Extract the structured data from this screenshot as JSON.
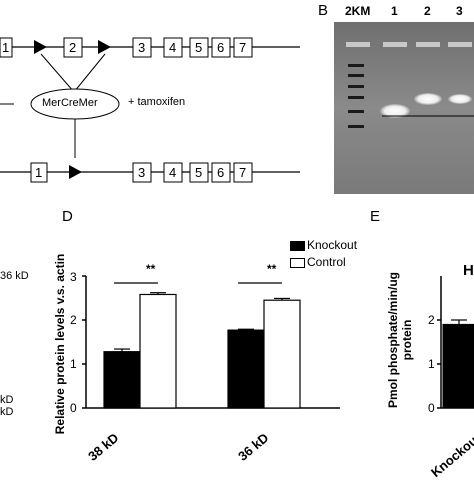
{
  "panel_labels": {
    "b": "B",
    "d": "D",
    "e": "E"
  },
  "schematic": {
    "exons_top": [
      "1",
      "2",
      "3",
      "4",
      "5",
      "6",
      "7"
    ],
    "exons_bottom": [
      "1",
      "3",
      "4",
      "5",
      "6",
      "7"
    ],
    "recombinase": "MerCreMer",
    "treatment": "+ tamoxifen"
  },
  "gel": {
    "lanes": [
      "2KM",
      "1",
      "2",
      "3"
    ]
  },
  "western_fragments": {
    "a": "36 kD",
    "b": "kD",
    "c": "kD"
  },
  "chart_data": [
    {
      "type": "bar",
      "panel": "D",
      "categories": [
        "38 kD",
        "36 kD"
      ],
      "series": [
        {
          "name": "Knockout",
          "values": [
            1.28,
            1.77
          ],
          "errors": [
            0.06,
            0.02
          ],
          "color": "#000000"
        },
        {
          "name": "Control",
          "values": [
            2.58,
            2.45
          ],
          "errors": [
            0.04,
            0.04
          ],
          "color": "#ffffff"
        }
      ],
      "ylabel": "Relative protein levels v.s. actin",
      "yticks": [
        "0",
        "1",
        "2",
        "3"
      ],
      "ylim": [
        0,
        3
      ],
      "significance": [
        "**",
        "**"
      ],
      "legend": "top-right"
    },
    {
      "type": "bar",
      "panel": "E",
      "categories": [
        "Knockout"
      ],
      "values": [
        1.9
      ],
      "errors": [
        0.1
      ],
      "ylabel": "Pmol phosphate/min/ug protein",
      "yticks": [
        "0",
        "1",
        "2"
      ],
      "ylim": [
        0,
        3
      ],
      "fragment_label": "H"
    }
  ]
}
